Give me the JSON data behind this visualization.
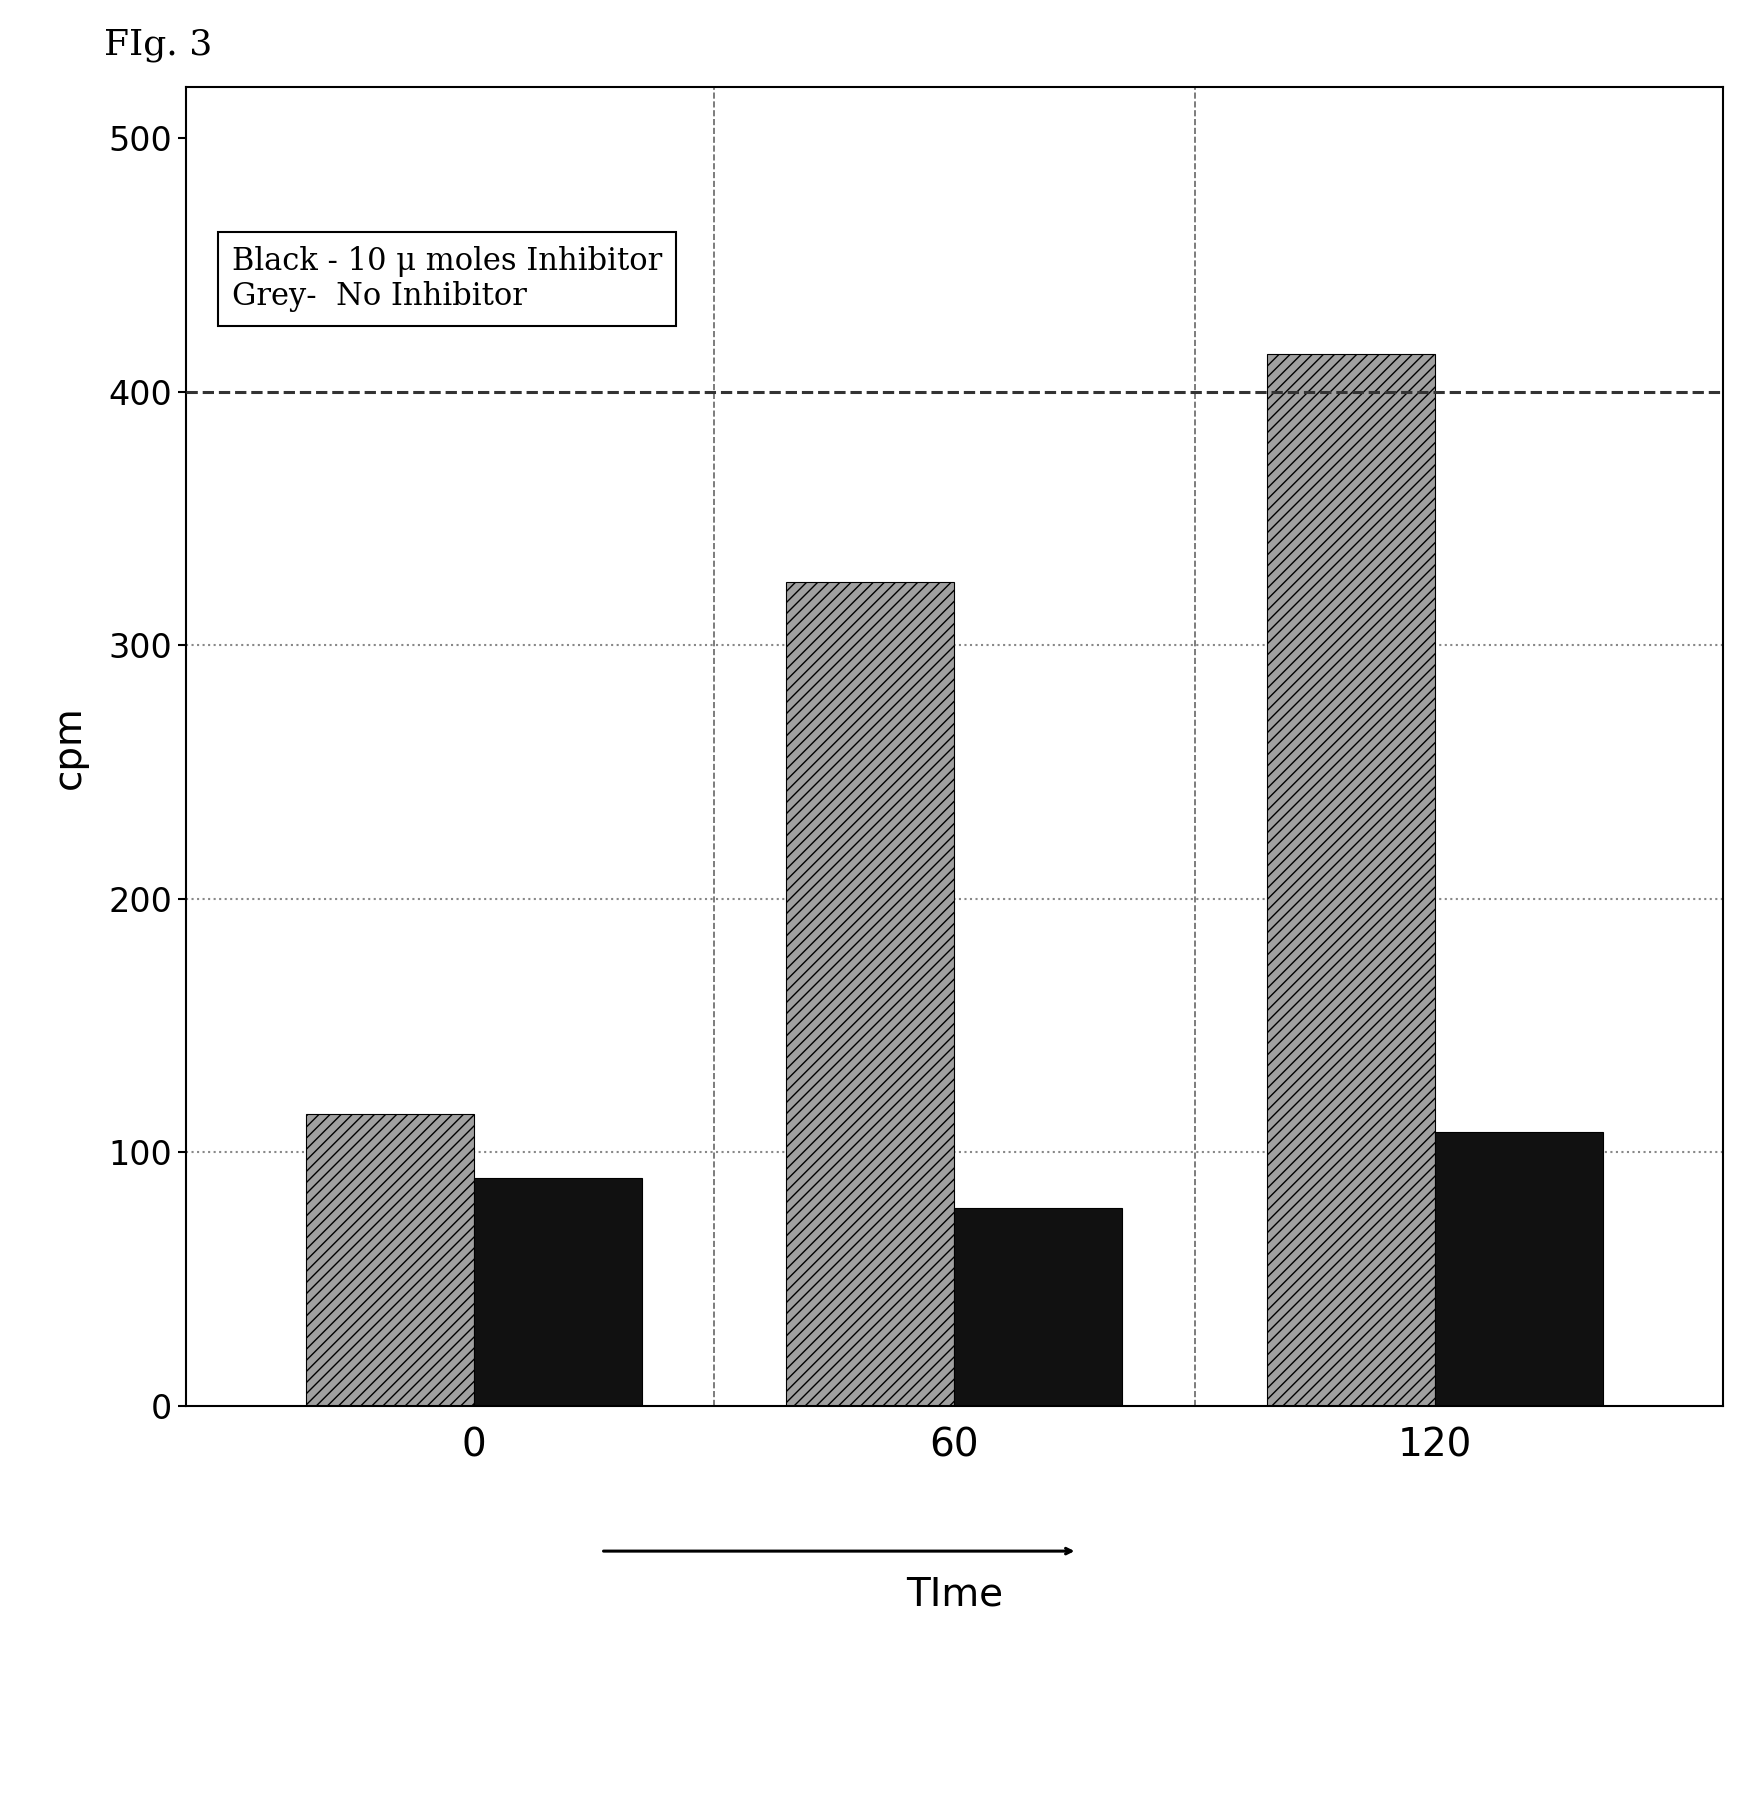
{
  "fig_label": "FIg. 3",
  "xlabel": "TIme",
  "ylabel": "cpm",
  "time_points": [
    0,
    60,
    120
  ],
  "grey_values": [
    115,
    325,
    415
  ],
  "black_values": [
    90,
    78,
    108
  ],
  "grey_color": "#a0a0a0",
  "black_color": "#111111",
  "grey_hatch": "///",
  "ylim": [
    0,
    520
  ],
  "yticks": [
    0,
    100,
    200,
    300,
    400,
    500
  ],
  "dashed_line_y": 400,
  "legend_line1": "Black - 10 μ moles Inhibitor",
  "legend_line2": "Grey-  No Inhibitor",
  "bar_width": 0.35,
  "background_color": "#ffffff",
  "plot_bg_color": "#ffffff",
  "grid_color_dotted": "#888888",
  "grid_color_dashed": "#333333"
}
